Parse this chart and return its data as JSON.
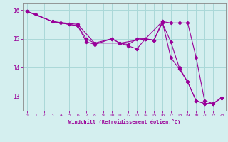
{
  "xlabel": "Windchill (Refroidissement éolien,°C)",
  "bg_color": "#d4efef",
  "line_color": "#990099",
  "grid_color": "#aad8d8",
  "axis_color": "#990099",
  "spine_color": "#888888",
  "xlim": [
    -0.5,
    23.5
  ],
  "ylim": [
    12.5,
    16.25
  ],
  "yticks": [
    13,
    14,
    15,
    16
  ],
  "xticks": [
    0,
    1,
    2,
    3,
    4,
    5,
    6,
    7,
    8,
    9,
    10,
    11,
    12,
    13,
    14,
    15,
    16,
    17,
    18,
    19,
    20,
    21,
    22,
    23
  ],
  "series1_x": [
    0,
    1,
    3,
    4,
    5,
    6,
    7,
    8,
    10,
    11,
    12,
    13,
    14,
    15,
    16,
    17,
    18,
    19,
    20,
    21,
    22,
    23
  ],
  "series1_y": [
    15.95,
    15.85,
    15.6,
    15.55,
    15.5,
    15.45,
    15.0,
    14.85,
    15.0,
    14.85,
    14.75,
    14.65,
    15.0,
    14.95,
    15.55,
    14.9,
    14.0,
    13.5,
    12.85,
    12.75,
    12.75,
    12.95
  ],
  "series2_x": [
    0,
    3,
    6,
    8,
    11,
    14,
    16,
    17,
    18,
    19,
    20,
    21,
    22,
    23
  ],
  "series2_y": [
    15.95,
    15.6,
    15.5,
    14.85,
    14.85,
    15.0,
    15.6,
    15.55,
    15.55,
    15.55,
    14.35,
    12.85,
    12.75,
    12.95
  ],
  "series3_x": [
    0,
    3,
    5,
    6,
    7,
    8,
    10,
    11,
    12,
    13,
    14,
    15,
    16,
    17,
    18,
    19,
    20,
    21,
    22,
    23
  ],
  "series3_y": [
    15.95,
    15.6,
    15.5,
    15.45,
    14.9,
    14.8,
    15.0,
    14.85,
    14.8,
    15.0,
    15.0,
    14.95,
    15.6,
    14.35,
    13.95,
    13.5,
    12.85,
    12.75,
    12.75,
    12.95
  ]
}
